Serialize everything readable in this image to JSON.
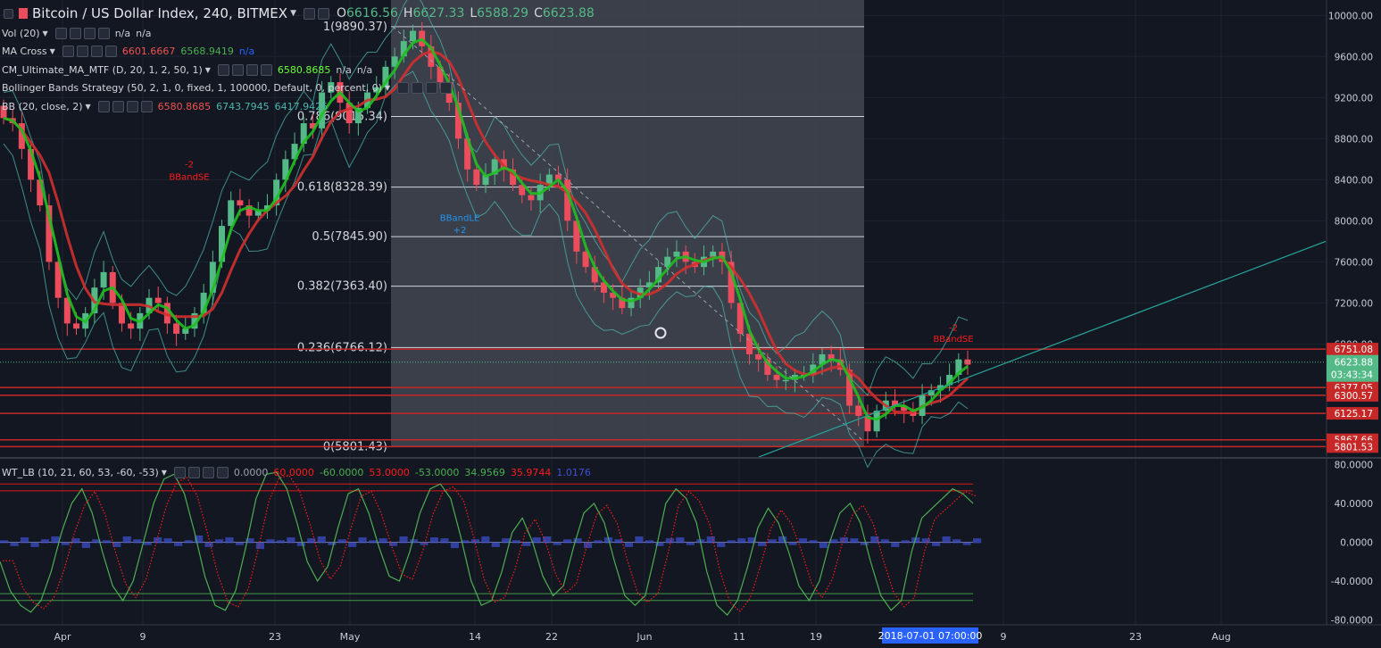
{
  "header": {
    "symbol": "Bitcoin / US Dollar Index, 240, BITMEX",
    "ohlc": [
      {
        "k": "O",
        "v": "6616.56"
      },
      {
        "k": "H",
        "v": "6627.33"
      },
      {
        "k": "L",
        "v": "6588.29"
      },
      {
        "k": "C",
        "v": "6623.88"
      }
    ]
  },
  "indicators": [
    {
      "name": "Vol (20)",
      "values": [
        {
          "t": "n/a",
          "c": "#c8ccd6"
        },
        {
          "t": "n/a",
          "c": "#c8ccd6"
        }
      ]
    },
    {
      "name": "MA Cross",
      "values": [
        {
          "t": "6601.6667",
          "c": "#ef5350"
        },
        {
          "t": "6568.9419",
          "c": "#4caf50"
        },
        {
          "t": "n/a",
          "c": "#2962ff"
        }
      ]
    },
    {
      "name": "CM_Ultimate_MA_MTF (D, 20, 1, 2, 50, 1)",
      "values": [
        {
          "t": "6580.8685",
          "c": "#66ff33"
        },
        {
          "t": "n/a",
          "c": "#c8ccd6"
        },
        {
          "t": "n/a",
          "c": "#c8ccd6"
        }
      ]
    },
    {
      "name": "Bollinger Bands Strategy (50, 2, 1, 0, fixed, 1, 100000, Default, 0, percent, 0)",
      "values": []
    },
    {
      "name": "BB (20, close, 2)",
      "values": [
        {
          "t": "6580.8685",
          "c": "#ef5350"
        },
        {
          "t": "6743.7945",
          "c": "#4db6ac"
        },
        {
          "t": "6417.9425",
          "c": "#4db6ac"
        }
      ]
    }
  ],
  "oscillator": {
    "name": "WT_LB (10, 21, 60, 53, -60, -53)",
    "values": [
      {
        "t": "0.0000",
        "c": "#9aa0ab"
      },
      {
        "t": "60.0000",
        "c": "#ff1a1a"
      },
      {
        "t": "-60.0000",
        "c": "#4caf50"
      },
      {
        "t": "53.0000",
        "c": "#ff1a1a"
      },
      {
        "t": "-53.0000",
        "c": "#4caf50"
      },
      {
        "t": "34.9569",
        "c": "#4caf50"
      },
      {
        "t": "35.9744",
        "c": "#ff1a1a"
      },
      {
        "t": "1.0176",
        "c": "#3f51d6"
      }
    ]
  },
  "colors": {
    "bg": "#131722",
    "up": "#53b987",
    "down": "#eb4d5c",
    "ma_fast": "#d32f2f",
    "ma_slow": "#1fc01f",
    "band": "#4db6ac",
    "hline": "#c62828",
    "fib_zone": "#434651"
  },
  "chart_data": [
    {
      "type": "candlestick",
      "ylim": [
        5700,
        10150
      ],
      "yticks": [
        "10000.00",
        "9600.00",
        "9200.00",
        "8800.00",
        "8400.00",
        "8000.00",
        "7600.00",
        "7200.00",
        "6800.00"
      ],
      "xticks": [
        "Apr",
        "9",
        "23",
        "May",
        "14",
        "22",
        "Jun",
        "11",
        "19",
        "9",
        "23",
        "Aug"
      ],
      "crosshair_date": "2018-07-01 07:00:00",
      "current_price": "6623.88",
      "countdown": "03:43:34",
      "price_labels": [
        {
          "t": "6751.08",
          "v": 6751.08
        },
        {
          "t": "6377.05",
          "v": 6377.05
        },
        {
          "t": "6300.57",
          "v": 6300.57
        },
        {
          "t": "6125.17",
          "v": 6125.17
        },
        {
          "t": "5867.66",
          "v": 5867.66
        },
        {
          "t": "5801.53",
          "v": 5801.53
        }
      ],
      "fib_levels": [
        {
          "t": "1(9890.37)",
          "v": 9890.37
        },
        {
          "t": "0.786(9015.34)",
          "v": 9015.34
        },
        {
          "t": "0.618(8328.39)",
          "v": 8328.39
        },
        {
          "t": "0.5(7845.90)",
          "v": 7845.9
        },
        {
          "t": "0.382(7363.40)",
          "v": 7363.4
        },
        {
          "t": "0.236(6766.12)",
          "v": 6766.12
        },
        {
          "t": "0(5801.43)",
          "v": 5801.43
        }
      ],
      "signals": [
        {
          "t": "-2",
          "v": 8520,
          "c": "#ff1a1a"
        },
        {
          "t": "BBandSE",
          "v": 8400,
          "c": "#ff1a1a"
        },
        {
          "t": "BBandLE",
          "v": 8000,
          "c": "#2196f3"
        },
        {
          "t": "+2",
          "v": 7880,
          "c": "#2196f3"
        },
        {
          "t": "-2",
          "v": 6930,
          "c": "#ff1a1a"
        },
        {
          "t": "BBandSE",
          "v": 6820,
          "c": "#ff1a1a"
        }
      ],
      "close_series": [
        9000,
        8950,
        8700,
        8400,
        8150,
        7600,
        7250,
        7000,
        6950,
        7100,
        7350,
        7500,
        7200,
        7000,
        6950,
        7100,
        7250,
        7200,
        7000,
        6900,
        6950,
        7100,
        7300,
        7600,
        7950,
        8200,
        8150,
        8050,
        8100,
        8150,
        8400,
        8600,
        8750,
        8950,
        8900,
        9250,
        9350,
        9150,
        8950,
        9100,
        9250,
        9300,
        9500,
        9600,
        9750,
        9850,
        9700,
        9500,
        9350,
        9150,
        8800,
        8500,
        8350,
        8450,
        8600,
        8500,
        8350,
        8250,
        8200,
        8350,
        8450,
        8400,
        8000,
        7700,
        7550,
        7400,
        7300,
        7250,
        7150,
        7250,
        7350,
        7400,
        7550,
        7650,
        7700,
        7600,
        7550,
        7650,
        7700,
        7600,
        7200,
        6900,
        6700,
        6650,
        6500,
        6450,
        6450,
        6500,
        6500,
        6600,
        6700,
        6650,
        6550,
        6200,
        6100,
        5950,
        6150,
        6250,
        6200,
        6150,
        6100,
        6300,
        6350,
        6400,
        6500,
        6650,
        6600
      ]
    },
    {
      "type": "line",
      "ylim": [
        -85,
        85
      ],
      "yticks": [
        "80.0000",
        "40.0000",
        "0.0000",
        "-40.0000",
        "-80.0000"
      ],
      "levels": [
        60,
        53,
        -53,
        -60
      ],
      "wt1": [
        -20,
        -50,
        -65,
        -72,
        -60,
        -30,
        10,
        40,
        55,
        30,
        -10,
        -45,
        -60,
        -40,
        0,
        40,
        65,
        70,
        50,
        10,
        -35,
        -65,
        -70,
        -50,
        -5,
        45,
        70,
        72,
        55,
        20,
        -20,
        -40,
        -25,
        15,
        50,
        55,
        30,
        -5,
        -35,
        -40,
        -10,
        30,
        55,
        60,
        45,
        5,
        -40,
        -65,
        -60,
        -30,
        10,
        25,
        0,
        -35,
        -55,
        -45,
        -5,
        30,
        40,
        20,
        -20,
        -55,
        -65,
        -55,
        -10,
        40,
        55,
        45,
        20,
        -30,
        -65,
        -75,
        -60,
        -25,
        15,
        35,
        20,
        -10,
        -45,
        -60,
        -40,
        0,
        30,
        40,
        20,
        -20,
        -55,
        -70,
        -60,
        -10,
        25,
        35,
        45,
        55,
        50,
        40
      ],
      "hist": [
        2,
        -3,
        5,
        -4,
        3,
        6,
        -2,
        4,
        -5,
        3,
        2,
        -4,
        6,
        3,
        -2,
        5,
        4,
        -3,
        2,
        7,
        -4,
        3,
        5,
        -2,
        4,
        -6,
        3,
        2,
        5,
        -3,
        4,
        6,
        -2,
        3,
        -4,
        5,
        2,
        4,
        -3,
        6,
        3,
        -2,
        5,
        4,
        -5,
        2,
        3,
        6,
        -4,
        4,
        2,
        -3,
        5,
        6,
        -2,
        3,
        4,
        -5,
        2,
        5,
        3,
        -4,
        6,
        2,
        -3,
        4,
        5,
        -2,
        3,
        6,
        -4,
        2,
        4,
        5,
        -3,
        3,
        6,
        -2,
        4,
        2,
        -5,
        3,
        5,
        4,
        -2,
        6,
        3,
        -4,
        2,
        5,
        4,
        -3,
        6,
        3,
        -2,
        4
      ]
    }
  ]
}
